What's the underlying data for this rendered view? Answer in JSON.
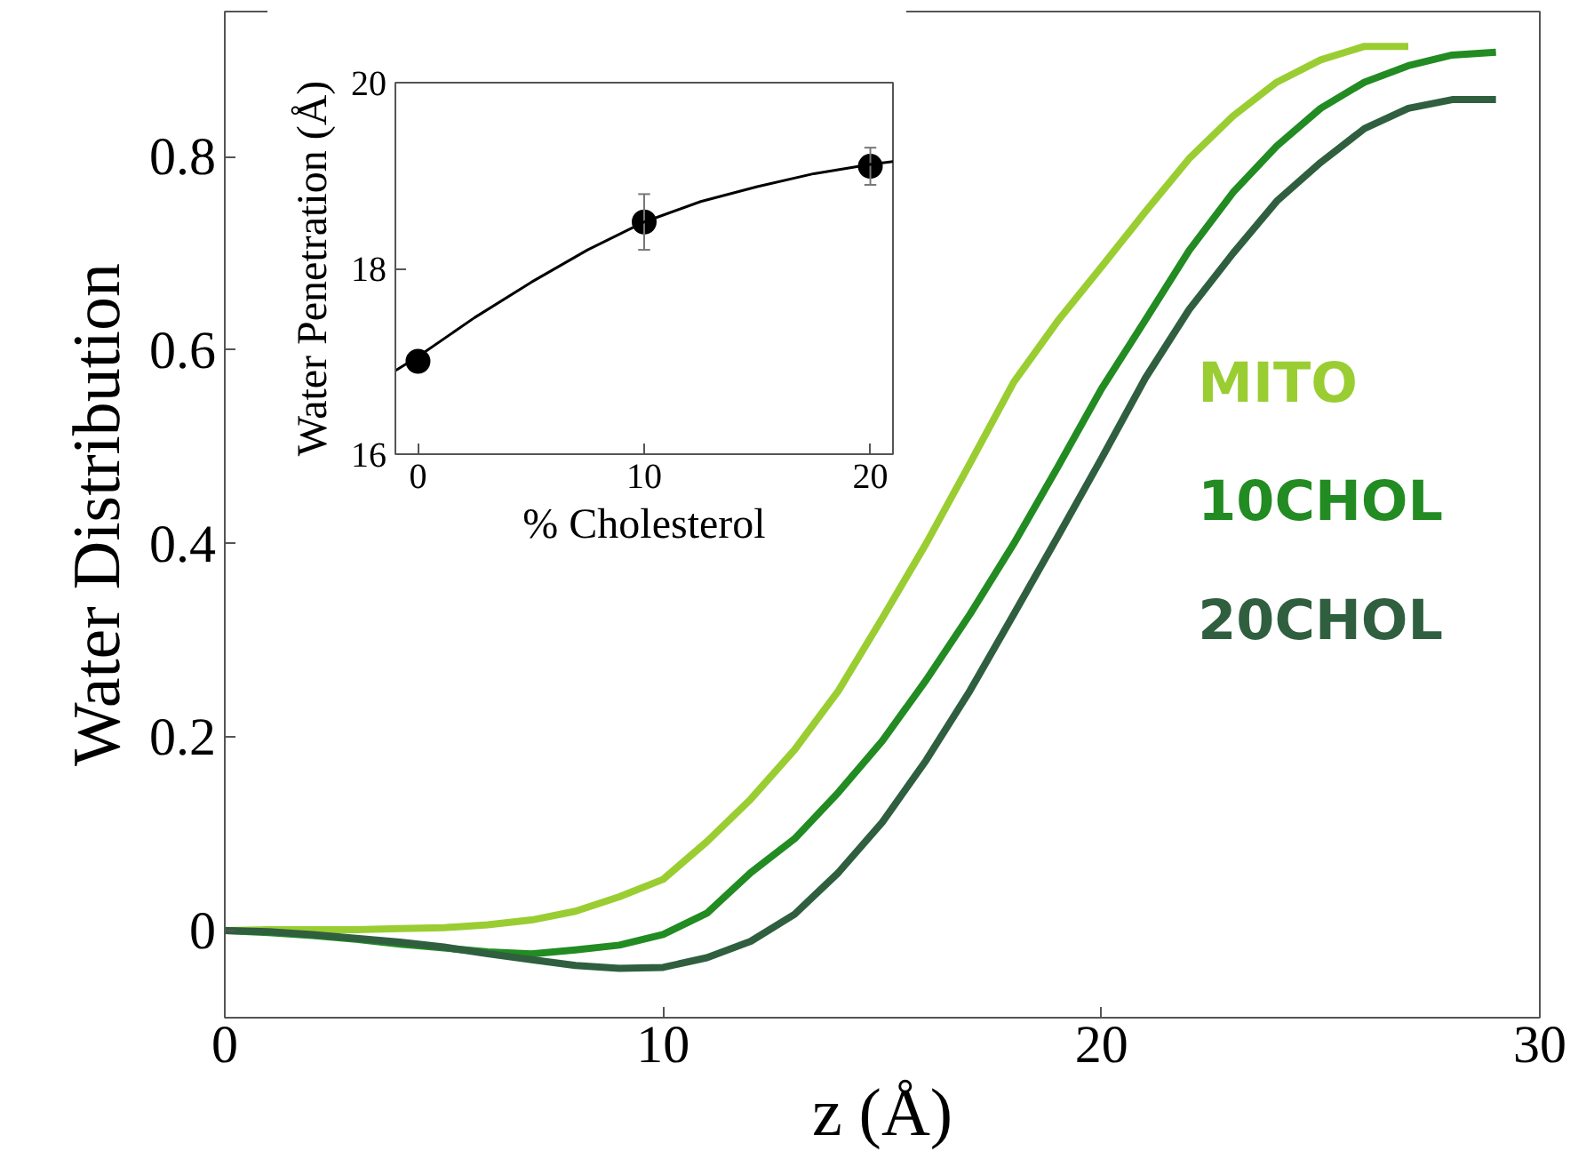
{
  "chart_data": [
    {
      "type": "line",
      "xlabel": "z (Å)",
      "ylabel": "Water Distribution",
      "xlim": [
        0,
        30
      ],
      "ylim": [
        -0.09,
        0.95
      ],
      "xticks": [
        0,
        10,
        20,
        30
      ],
      "yticks": [
        0,
        0.2,
        0.4,
        0.6,
        0.8
      ],
      "x": [
        0,
        1,
        2,
        3,
        4,
        5,
        6,
        7,
        8,
        9,
        10,
        11,
        12,
        13,
        14,
        15,
        16,
        17,
        18,
        19,
        20,
        21,
        22,
        23,
        24,
        25,
        26,
        27,
        28,
        29
      ],
      "series": [
        {
          "name": "MITO",
          "color": "#9acd32",
          "values": [
            0,
            0.001,
            0.001,
            0.001,
            0.002,
            0.003,
            0.006,
            0.011,
            0.02,
            0.035,
            0.053,
            0.092,
            0.136,
            0.187,
            0.248,
            0.323,
            0.4,
            0.483,
            0.567,
            0.63,
            0.686,
            0.743,
            0.798,
            0.842,
            0.877,
            0.9,
            0.914,
            0.914,
            null,
            null
          ]
        },
        {
          "name": "10CHOL",
          "color": "#228b22",
          "values": [
            0,
            -0.002,
            -0.005,
            -0.009,
            -0.014,
            -0.018,
            -0.022,
            -0.024,
            -0.02,
            -0.015,
            -0.004,
            0.018,
            0.06,
            0.095,
            0.143,
            0.196,
            0.259,
            0.327,
            0.4,
            0.479,
            0.56,
            0.631,
            0.703,
            0.763,
            0.811,
            0.85,
            0.877,
            0.894,
            0.905,
            0.908
          ]
        },
        {
          "name": "20CHOL",
          "color": "#2f5f3f",
          "values": [
            0,
            -0.001,
            -0.004,
            -0.008,
            -0.012,
            -0.017,
            -0.024,
            -0.03,
            -0.036,
            -0.039,
            -0.038,
            -0.028,
            -0.011,
            0.017,
            0.06,
            0.112,
            0.176,
            0.248,
            0.327,
            0.407,
            0.488,
            0.571,
            0.642,
            0.7,
            0.754,
            0.794,
            0.829,
            0.85,
            0.859,
            0.859
          ]
        }
      ]
    },
    {
      "type": "scatter",
      "xlabel": "% Cholesterol",
      "ylabel": "Water Penetration (Å)",
      "xlim": [
        -1,
        21
      ],
      "ylim": [
        16,
        20
      ],
      "xticks": [
        0,
        10,
        20
      ],
      "yticks": [
        16,
        18,
        20
      ],
      "x": [
        0,
        10,
        20
      ],
      "series": [
        {
          "color": "#000000",
          "marker": "circle",
          "values": [
            17.0,
            18.5,
            19.1
          ],
          "errors": [
            null,
            0.3,
            0.2
          ]
        },
        {
          "type": "line",
          "color": "#000000",
          "x": [
            -1,
            0,
            2.5,
            5,
            7.5,
            10,
            12.5,
            15,
            17.5,
            20,
            21
          ],
          "values": [
            16.9,
            17.05,
            17.47,
            17.85,
            18.2,
            18.5,
            18.72,
            18.88,
            19.02,
            19.12,
            19.15
          ]
        }
      ]
    }
  ]
}
